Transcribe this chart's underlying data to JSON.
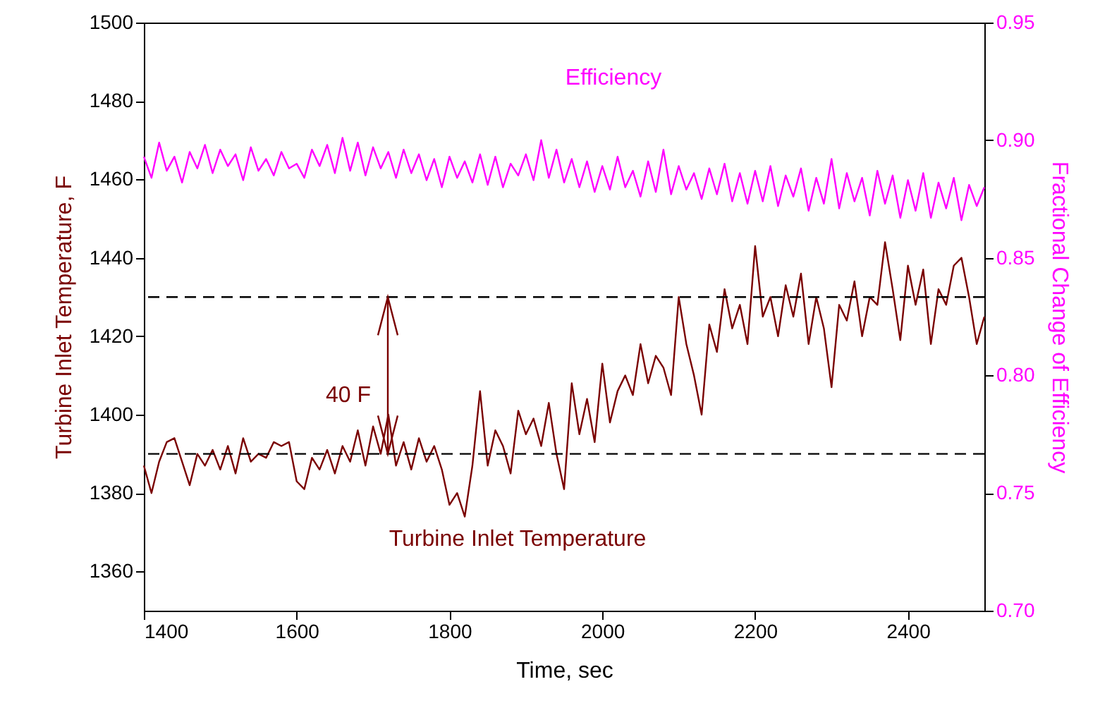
{
  "chart_data": {
    "type": "line",
    "xlabel": "Time, sec",
    "ylabel": "Turbine Inlet Temperature, F",
    "y2label": "Fractional Change of Efficiency",
    "x": [
      1400,
      1410,
      1420,
      1430,
      1440,
      1450,
      1460,
      1470,
      1480,
      1490,
      1500,
      1510,
      1520,
      1530,
      1540,
      1550,
      1560,
      1570,
      1580,
      1590,
      1600,
      1610,
      1620,
      1630,
      1640,
      1650,
      1660,
      1670,
      1680,
      1690,
      1700,
      1710,
      1720,
      1730,
      1740,
      1750,
      1760,
      1770,
      1780,
      1790,
      1800,
      1810,
      1820,
      1830,
      1840,
      1850,
      1860,
      1870,
      1880,
      1890,
      1900,
      1910,
      1920,
      1930,
      1940,
      1950,
      1960,
      1970,
      1980,
      1990,
      2000,
      2010,
      2020,
      2030,
      2040,
      2050,
      2060,
      2070,
      2080,
      2090,
      2100,
      2110,
      2120,
      2130,
      2140,
      2150,
      2160,
      2170,
      2180,
      2190,
      2200,
      2210,
      2220,
      2230,
      2240,
      2250,
      2260,
      2270,
      2280,
      2290,
      2300,
      2310,
      2320,
      2330,
      2340,
      2350,
      2360,
      2370,
      2380,
      2390,
      2400,
      2410,
      2420,
      2430,
      2440,
      2450,
      2460,
      2470,
      2480,
      2490,
      2500
    ],
    "series": [
      {
        "name": "Turbine Inlet Temperature",
        "color": "#7a0000",
        "values": [
          1387,
          1380,
          1388,
          1393,
          1394,
          1388,
          1382,
          1390,
          1387,
          1391,
          1386,
          1392,
          1385,
          1394,
          1388,
          1390,
          1389,
          1393,
          1392,
          1393,
          1383,
          1381,
          1389,
          1386,
          1391,
          1385,
          1392,
          1388,
          1396,
          1387,
          1397,
          1390,
          1400,
          1387,
          1393,
          1386,
          1394,
          1388,
          1392,
          1386,
          1377,
          1380,
          1374,
          1387,
          1406,
          1387,
          1396,
          1392,
          1385,
          1401,
          1395,
          1399,
          1392,
          1403,
          1390,
          1381,
          1408,
          1395,
          1404,
          1393,
          1413,
          1398,
          1406,
          1410,
          1405,
          1418,
          1408,
          1415,
          1412,
          1405,
          1430,
          1418,
          1410,
          1400,
          1423,
          1416,
          1432,
          1422,
          1428,
          1418,
          1443,
          1425,
          1430,
          1420,
          1433,
          1425,
          1436,
          1418,
          1430,
          1422,
          1407,
          1428,
          1424,
          1434,
          1420,
          1430,
          1428,
          1444,
          1432,
          1419,
          1438,
          1428,
          1437,
          1418,
          1432,
          1428,
          1438,
          1440,
          1430,
          1418,
          1425
        ]
      },
      {
        "name": "Efficiency",
        "color": "#ff00ff",
        "axis": "y2",
        "values": [
          0.893,
          0.884,
          0.899,
          0.887,
          0.893,
          0.882,
          0.895,
          0.888,
          0.898,
          0.886,
          0.896,
          0.889,
          0.894,
          0.883,
          0.897,
          0.887,
          0.892,
          0.885,
          0.895,
          0.888,
          0.89,
          0.884,
          0.896,
          0.889,
          0.898,
          0.886,
          0.901,
          0.887,
          0.899,
          0.885,
          0.897,
          0.888,
          0.895,
          0.884,
          0.896,
          0.886,
          0.894,
          0.883,
          0.892,
          0.88,
          0.893,
          0.884,
          0.891,
          0.882,
          0.894,
          0.881,
          0.893,
          0.88,
          0.89,
          0.885,
          0.894,
          0.883,
          0.9,
          0.884,
          0.896,
          0.882,
          0.892,
          0.88,
          0.891,
          0.878,
          0.889,
          0.879,
          0.893,
          0.88,
          0.887,
          0.876,
          0.891,
          0.878,
          0.896,
          0.877,
          0.889,
          0.879,
          0.886,
          0.875,
          0.888,
          0.877,
          0.89,
          0.874,
          0.886,
          0.873,
          0.887,
          0.874,
          0.889,
          0.872,
          0.885,
          0.876,
          0.888,
          0.87,
          0.884,
          0.873,
          0.892,
          0.871,
          0.886,
          0.874,
          0.884,
          0.868,
          0.887,
          0.873,
          0.885,
          0.867,
          0.883,
          0.87,
          0.886,
          0.867,
          0.882,
          0.871,
          0.884,
          0.866,
          0.881,
          0.872,
          0.88
        ]
      }
    ],
    "xlim": [
      1400,
      2500
    ],
    "xticks": [
      1400,
      1600,
      1800,
      2000,
      2200,
      2400
    ],
    "ylim": [
      1350,
      1500
    ],
    "yticks": [
      1360,
      1380,
      1400,
      1420,
      1440,
      1460,
      1480,
      1500
    ],
    "y2lim": [
      0.7,
      0.95
    ],
    "y2ticks": [
      {
        "value": 0.7,
        "label": "0.70"
      },
      {
        "value": 0.75,
        "label": "0.75"
      },
      {
        "value": 0.8,
        "label": "0.80"
      },
      {
        "value": 0.85,
        "label": "0.85"
      },
      {
        "value": 0.9,
        "label": "0.90"
      },
      {
        "value": 0.95,
        "label": "0.95"
      }
    ],
    "ref_lines": [
      {
        "axis": "y",
        "value": 1430,
        "color": "#000000",
        "line_style": "dashed"
      },
      {
        "axis": "y",
        "value": 1390,
        "color": "#000000",
        "line_style": "dashed"
      }
    ],
    "annotations": [
      "40 F"
    ],
    "grid": false
  }
}
